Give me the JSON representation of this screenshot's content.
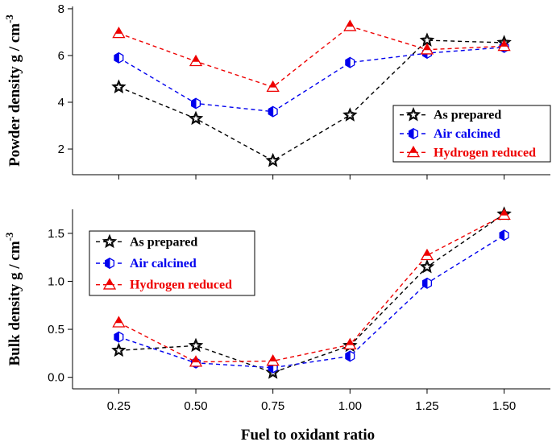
{
  "chart_data": [
    {
      "type": "line",
      "panel": "top",
      "ylabel_main": "Powder density  g / cm",
      "ylabel_sup": "-3",
      "xlabel": "",
      "x": [
        0.25,
        0.5,
        0.75,
        1.0,
        1.25,
        1.5
      ],
      "xlim": [
        0.1,
        1.65
      ],
      "ylim": [
        0.9,
        8.1
      ],
      "yticks": [
        2,
        4,
        6,
        8
      ],
      "ytick_labels": [
        "2",
        "4",
        "6",
        "8"
      ],
      "legend_position": "right",
      "series": [
        {
          "name": "As prepared",
          "color": "#000000",
          "marker": "star",
          "values": [
            4.65,
            3.3,
            1.5,
            3.45,
            6.65,
            6.55
          ]
        },
        {
          "name": "Air calcined",
          "color": "#0000ee",
          "marker": "half-hexagon",
          "values": [
            5.9,
            3.95,
            3.6,
            5.7,
            6.1,
            6.35
          ]
        },
        {
          "name": "Hydrogen reduced",
          "color": "#ee0000",
          "marker": "triangle",
          "values": [
            6.95,
            5.75,
            4.65,
            7.25,
            6.25,
            6.4
          ]
        }
      ]
    },
    {
      "type": "line",
      "panel": "bottom",
      "ylabel_main": "Bulk density  g / cm",
      "ylabel_sup": "-3",
      "xlabel": "Fuel to oxidant ratio",
      "x": [
        0.25,
        0.5,
        0.75,
        1.0,
        1.25,
        1.5
      ],
      "xlim": [
        0.1,
        1.65
      ],
      "ylim": [
        -0.12,
        1.75
      ],
      "yticks": [
        0.0,
        0.5,
        1.0,
        1.5
      ],
      "ytick_labels": [
        "0.0",
        "0.5",
        "1.0",
        "1.5"
      ],
      "xticks": [
        0.25,
        0.5,
        0.75,
        1.0,
        1.25,
        1.5
      ],
      "xtick_labels": [
        "0.25",
        "0.50",
        "0.75",
        "1.00",
        "1.25",
        "1.50"
      ],
      "legend_position": "top-left",
      "series": [
        {
          "name": "As prepared",
          "color": "#000000",
          "marker": "star",
          "values": [
            0.28,
            0.33,
            0.05,
            0.33,
            1.15,
            1.7
          ]
        },
        {
          "name": "Air calcined",
          "color": "#0000ee",
          "marker": "half-hexagon",
          "values": [
            0.42,
            0.15,
            0.1,
            0.22,
            0.98,
            1.48
          ]
        },
        {
          "name": "Hydrogen reduced",
          "color": "#ee0000",
          "marker": "triangle",
          "values": [
            0.57,
            0.16,
            0.17,
            0.34,
            1.27,
            1.69
          ]
        }
      ]
    }
  ]
}
